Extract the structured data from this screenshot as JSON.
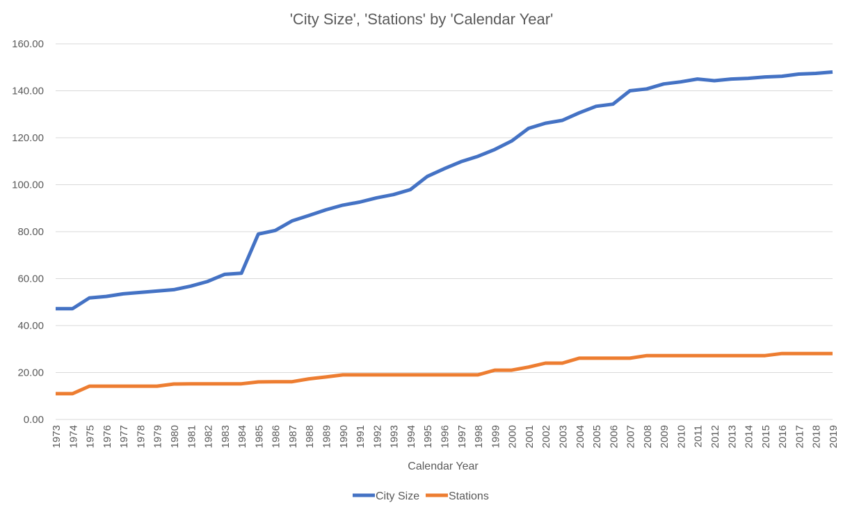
{
  "chart_data": {
    "type": "line",
    "title": "'City Size', 'Stations' by 'Calendar Year'",
    "xlabel": "Calendar Year",
    "ylabel": "",
    "ylim": [
      0,
      160
    ],
    "yticks": [
      0,
      20,
      40,
      60,
      80,
      100,
      120,
      140,
      160
    ],
    "ytick_labels": [
      "0.00",
      "20.00",
      "40.00",
      "60.00",
      "80.00",
      "100.00",
      "120.00",
      "140.00",
      "160.00"
    ],
    "grid": true,
    "legend_position": "bottom",
    "categories": [
      "1973",
      "1974",
      "1975",
      "1976",
      "1977",
      "1978",
      "1979",
      "1980",
      "1981",
      "1982",
      "1983",
      "1984",
      "1985",
      "1986",
      "1987",
      "1988",
      "1989",
      "1990",
      "1991",
      "1992",
      "1993",
      "1994",
      "1995",
      "1996",
      "1997",
      "1998",
      "1999",
      "2000",
      "2001",
      "2002",
      "2003",
      "2004",
      "2005",
      "2006",
      "2007",
      "2008",
      "2009",
      "2010",
      "2011",
      "2012",
      "2013",
      "2014",
      "2015",
      "2016",
      "2017",
      "2018",
      "2019"
    ],
    "series": [
      {
        "name": "City Size",
        "color": "#4472C4",
        "values": [
          47.2,
          47.2,
          51.8,
          52.4,
          53.5,
          54.1,
          54.7,
          55.3,
          56.8,
          58.8,
          61.8,
          62.3,
          79.0,
          80.5,
          84.6,
          86.9,
          89.3,
          91.3,
          92.6,
          94.4,
          95.8,
          97.9,
          103.5,
          106.8,
          109.8,
          112.1,
          115.0,
          118.6,
          124.0,
          126.2,
          127.4,
          130.6,
          133.4,
          134.3,
          140.0,
          140.8,
          142.9,
          143.8,
          145.0,
          144.3,
          145.0,
          145.3,
          145.9,
          146.2,
          147.1,
          147.4,
          148.0
        ]
      },
      {
        "name": "Stations",
        "color": "#ED7D31",
        "values": [
          11,
          11,
          14.2,
          14.2,
          14.2,
          14.2,
          14.2,
          15.1,
          15.2,
          15.2,
          15.2,
          15.2,
          16.0,
          16.1,
          16.1,
          17.3,
          18.1,
          19.0,
          19.0,
          19.0,
          19.0,
          19.0,
          19.0,
          19.0,
          19.0,
          19.0,
          21.0,
          21.0,
          22.3,
          24.0,
          24.0,
          26.1,
          26.1,
          26.1,
          26.1,
          27.2,
          27.2,
          27.2,
          27.2,
          27.2,
          27.2,
          27.2,
          27.2,
          28.1,
          28.1,
          28.1,
          28.1
        ]
      }
    ]
  }
}
